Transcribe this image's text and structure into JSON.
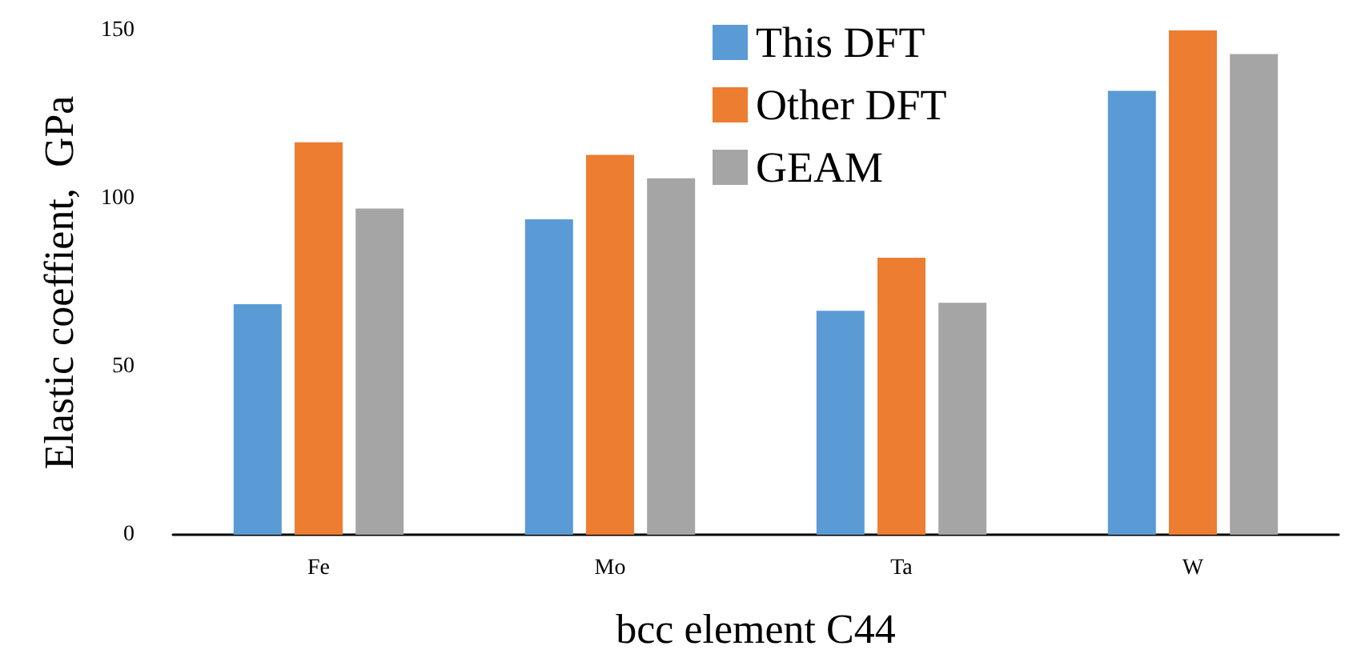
{
  "chart_data": {
    "type": "bar",
    "xlabel": "bcc element C44",
    "ylabel": "Elastic coeffient,  GPa",
    "categories": [
      "Fe",
      "Mo",
      "Ta",
      "W"
    ],
    "series": [
      {
        "name": "This DFT",
        "color": "#5b9bd5",
        "values": [
          68.6,
          93.8,
          66.6,
          132
        ]
      },
      {
        "name": "Other DFT",
        "color": "#ed7d31",
        "values": [
          116.7,
          113,
          82.4,
          150
        ]
      },
      {
        "name": "GEAM",
        "color": "#a5a5a5",
        "values": [
          97,
          106,
          69,
          143
        ]
      }
    ],
    "ylim": [
      0,
      150
    ],
    "yticks": [
      0,
      50,
      100,
      150
    ],
    "grid": false,
    "legend": "top"
  }
}
